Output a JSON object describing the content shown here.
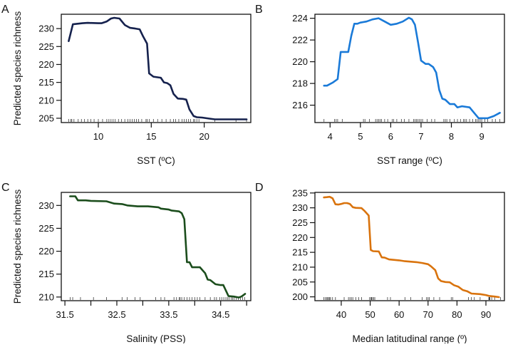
{
  "chart_data": [
    {
      "type": "line",
      "panel_label": "A",
      "xlabel": "SST (ºC)",
      "ylabel": "Predicted species richness",
      "xlim": [
        6.5,
        24.4
      ],
      "ylim": [
        203.8,
        234
      ],
      "xticks": [
        10,
        15,
        20
      ],
      "xticklabels": [
        "10",
        "15",
        "20"
      ],
      "yticks": [
        205,
        210,
        215,
        220,
        225,
        230
      ],
      "yticklabels": [
        "205",
        "210",
        "215",
        "220",
        "225",
        "230"
      ],
      "color": "#15214d",
      "x": [
        7.2,
        7.6,
        8.5,
        9,
        10,
        10.3,
        10.8,
        11.2,
        11.5,
        12,
        12.5,
        13,
        13.5,
        13.9,
        14.2,
        14.6,
        14.8,
        15.2,
        15.9,
        16.2,
        16.5,
        16.8,
        17.1,
        17.5,
        18,
        18.3,
        18.6,
        19,
        19.3,
        19.8,
        20.5,
        21,
        22,
        24
      ],
      "y": [
        226.5,
        231.2,
        231.5,
        231.6,
        231.5,
        231.5,
        232,
        232.8,
        233,
        232.8,
        231,
        230.2,
        230,
        229.8,
        228,
        225.8,
        217.5,
        216.6,
        216.3,
        215,
        214.8,
        214.2,
        211.8,
        210.5,
        210.4,
        210.2,
        207.5,
        205.6,
        205.3,
        205.2,
        204.9,
        204.7,
        204.7,
        204.7
      ],
      "rug": [
        7.2,
        7.4,
        7.5,
        7.7,
        8.1,
        8.4,
        8.7,
        9.0,
        9.3,
        9.6,
        10.0,
        10.4,
        10.8,
        11.0,
        11.2,
        11.4,
        11.6,
        11.9,
        12.2,
        12.5,
        12.8,
        13.0,
        13.2,
        13.4,
        13.6,
        13.8,
        14.1,
        14.5,
        14.6,
        14.8,
        15.2,
        15.6,
        16.0,
        16.4,
        16.8,
        17.1,
        17.3,
        17.6,
        17.9,
        18.1,
        18.3,
        18.5,
        18.7,
        19.0,
        19.1,
        19.3,
        19.5,
        21.0,
        23.0,
        24.0
      ]
    },
    {
      "type": "line",
      "panel_label": "B",
      "xlabel": "SST range (ºC)",
      "ylabel": "",
      "xlim": [
        3.5,
        9.75
      ],
      "ylim": [
        214.4,
        224.37
      ],
      "xticks": [
        4,
        5,
        6,
        7,
        8,
        9
      ],
      "xticklabels": [
        "4",
        "5",
        "6",
        "7",
        "8",
        "9"
      ],
      "yticks": [
        216,
        218,
        220,
        222,
        224
      ],
      "yticklabels": [
        "216",
        "218",
        "220",
        "222",
        "224"
      ],
      "color": "#1a7ad8",
      "x": [
        3.8,
        3.9,
        4.1,
        4.25,
        4.35,
        4.6,
        4.7,
        4.8,
        4.9,
        5.0,
        5.2,
        5.4,
        5.6,
        5.8,
        6.0,
        6.2,
        6.4,
        6.6,
        6.7,
        6.8,
        6.9,
        7.0,
        7.15,
        7.25,
        7.4,
        7.5,
        7.6,
        7.7,
        7.8,
        7.95,
        8.1,
        8.2,
        8.35,
        8.6,
        8.75,
        8.9,
        9.2,
        9.4,
        9.6
      ],
      "y": [
        217.8,
        217.8,
        218.1,
        218.4,
        220.9,
        220.9,
        222.4,
        223.5,
        223.5,
        223.6,
        223.7,
        223.9,
        224.0,
        223.7,
        223.4,
        223.5,
        223.7,
        224.05,
        223.9,
        223.4,
        221.8,
        220.1,
        219.8,
        219.8,
        219.5,
        219.0,
        217.4,
        216.6,
        216.5,
        216.1,
        216.1,
        215.8,
        215.9,
        215.8,
        215.3,
        214.8,
        214.8,
        215.0,
        215.3
      ],
      "rug": [
        3.8,
        4.15,
        4.2,
        4.25,
        4.4,
        5.1,
        5.15,
        5.3,
        5.5,
        5.55,
        5.6,
        5.65,
        5.7,
        5.8,
        5.9,
        6.05,
        6.1,
        6.2,
        6.35,
        6.45,
        6.6,
        6.75,
        6.8,
        6.85,
        6.9,
        6.95,
        7.0,
        7.05,
        7.2,
        7.35,
        7.45,
        7.75,
        7.8,
        7.85,
        7.95,
        8.1,
        8.2,
        8.3,
        8.4,
        8.45,
        8.5,
        8.6,
        8.7,
        8.8,
        8.85,
        8.9,
        8.95,
        9.0,
        9.1,
        9.2,
        9.35,
        9.45,
        9.6
      ]
    },
    {
      "type": "line",
      "panel_label": "C",
      "xlabel": "Salinity (PSS)",
      "ylabel": "Predicted species richness",
      "xlim": [
        31.43,
        35.08
      ],
      "ylim": [
        209.2,
        232.85
      ],
      "xticks": [
        31.5,
        32,
        32.5,
        33,
        33.5,
        34,
        34.5,
        35
      ],
      "xticklabels": [
        "31.5",
        "",
        "32.5",
        "",
        "33.5",
        "",
        "34.5",
        ""
      ],
      "yticks": [
        210,
        215,
        220,
        225,
        230
      ],
      "yticklabels": [
        "210",
        "215",
        "220",
        "225",
        "230"
      ],
      "color": "#1b4d1c",
      "x": [
        31.6,
        31.7,
        31.75,
        31.9,
        32.0,
        32.3,
        32.45,
        32.6,
        32.7,
        32.9,
        33.1,
        33.3,
        33.35,
        33.5,
        33.55,
        33.7,
        33.75,
        33.8,
        33.85,
        33.9,
        33.95,
        34.1,
        34.2,
        34.25,
        34.3,
        34.4,
        34.5,
        34.55,
        34.65,
        34.75,
        34.85,
        34.9,
        34.97
      ],
      "y": [
        232,
        232,
        231.1,
        231.1,
        231.0,
        230.9,
        230.4,
        230.3,
        230.0,
        229.8,
        229.8,
        229.6,
        229.3,
        229.1,
        228.9,
        228.7,
        228.3,
        227,
        217.6,
        217.6,
        216.5,
        216.5,
        215.2,
        213.8,
        213.7,
        212.8,
        212.6,
        212.6,
        210.2,
        210.1,
        209.9,
        210.1,
        210.7
      ],
      "rug": [
        31.6,
        31.65,
        31.8,
        32.05,
        32.3,
        32.6,
        32.7,
        32.85,
        32.95,
        33.25,
        33.35,
        33.42,
        33.6,
        33.65,
        33.7,
        33.72,
        33.75,
        33.8,
        33.85,
        33.9,
        33.95,
        34.0,
        34.05,
        34.1,
        34.2,
        34.3,
        34.38,
        34.42,
        34.48,
        34.52,
        34.56,
        34.6,
        34.63,
        34.66,
        34.7,
        34.73,
        34.76,
        34.8,
        34.84,
        34.88,
        34.92,
        34.96
      ]
    },
    {
      "type": "line",
      "panel_label": "D",
      "xlabel": "Median latitudinal range (º)",
      "ylabel": "",
      "xlim": [
        30.9,
        96.4
      ],
      "ylim": [
        198.7,
        235.2
      ],
      "xticks": [
        40,
        50,
        60,
        70,
        80,
        90
      ],
      "xticklabels": [
        "40",
        "50",
        "60",
        "70",
        "80",
        "90"
      ],
      "yticks": [
        200,
        205,
        210,
        215,
        220,
        225,
        230,
        235
      ],
      "yticklabels": [
        "200",
        "205",
        "210",
        "215",
        "220",
        "225",
        "230",
        "235"
      ],
      "color": "#d9730d",
      "x": [
        34,
        35,
        36,
        37,
        38,
        39,
        40,
        41,
        42,
        43,
        44,
        45,
        47,
        48,
        49.5,
        50.2,
        51,
        53,
        54,
        55,
        56.5,
        60,
        62,
        66,
        68,
        70,
        71,
        72.5,
        73.5,
        74.5,
        76,
        77.5,
        79,
        80.5,
        82,
        83.5,
        85,
        88,
        90,
        91,
        93,
        94.5
      ],
      "y": [
        233.5,
        233.6,
        233.7,
        233.2,
        231.2,
        231.1,
        231.3,
        231.6,
        231.6,
        231.3,
        230.2,
        230.0,
        229.9,
        229,
        227.4,
        215.8,
        215.4,
        215.3,
        213.3,
        213.2,
        212.6,
        212.3,
        212,
        211.7,
        211.4,
        211,
        210.3,
        209,
        206.2,
        205.3,
        205.0,
        204.9,
        203.9,
        203.4,
        202.3,
        201.9,
        201.1,
        200.9,
        200.6,
        200.3,
        200.1,
        199.9
      ],
      "rug": [
        34,
        34.5,
        35,
        35.3,
        35.6,
        36,
        36.3,
        37,
        38,
        41,
        42.5,
        43,
        43.5,
        44,
        45,
        46,
        47,
        49.8,
        50.2,
        50.5,
        50.8,
        51.2,
        51.6,
        56,
        57,
        62,
        64,
        68,
        69.5,
        70,
        70.4,
        72,
        74,
        78,
        78.5,
        84,
        85,
        86,
        88,
        91,
        91.2,
        91.4,
        92,
        93,
        95
      ]
    }
  ]
}
